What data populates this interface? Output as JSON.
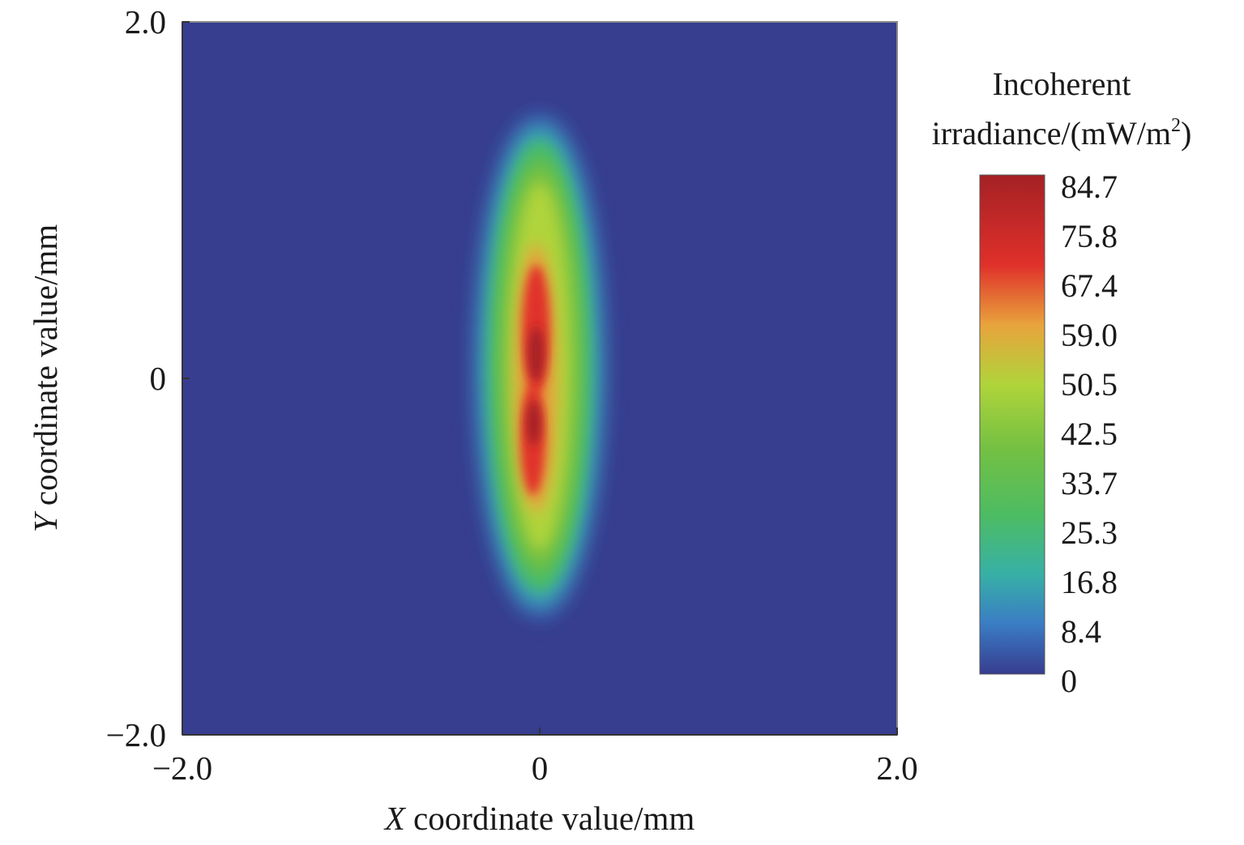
{
  "chart_data": {
    "type": "heatmap",
    "title": "",
    "xlabel": {
      "var": "X",
      "rest": " coordinate value/mm"
    },
    "ylabel": {
      "var": "Y",
      "rest": " coordinate value/mm"
    },
    "xlim": [
      -2.0,
      2.0
    ],
    "ylim": [
      -2.0,
      2.0
    ],
    "x_ticks": [
      -2.0,
      0,
      2.0
    ],
    "y_ticks": [
      -2.0,
      0,
      2.0
    ],
    "x_tick_labels": [
      "−2.0",
      "0",
      "2.0"
    ],
    "y_tick_labels": [
      "−2.0",
      "0",
      "2.0"
    ],
    "grid": false,
    "background_value": 0,
    "spot": {
      "shape": "elongated ellipse along Y",
      "center": [
        0,
        0
      ],
      "outer_extent_x": [
        -0.35,
        0.35
      ],
      "outer_extent_y": [
        -1.35,
        1.45
      ],
      "core_extent_x": [
        -0.1,
        0.06
      ],
      "core_extent_y": [
        -0.7,
        0.7
      ],
      "peak_value": 84.7
    },
    "colorbar": {
      "title_line1": "Incoherent",
      "title_line2": "irradiance/(mW/m",
      "title_sup": "2",
      "title_close": ")",
      "min": 0,
      "max": 84.7,
      "tick_labels": [
        "84.7",
        "75.8",
        "67.4",
        "59.0",
        "50.5",
        "42.5",
        "33.7",
        "25.3",
        "16.8",
        "8.4",
        "0"
      ],
      "colormap": [
        "#373d8f",
        "#3a7cc4",
        "#37b0a6",
        "#4dbc62",
        "#73c043",
        "#b0d43a",
        "#e8a33c",
        "#e0302a",
        "#a42125"
      ]
    }
  }
}
